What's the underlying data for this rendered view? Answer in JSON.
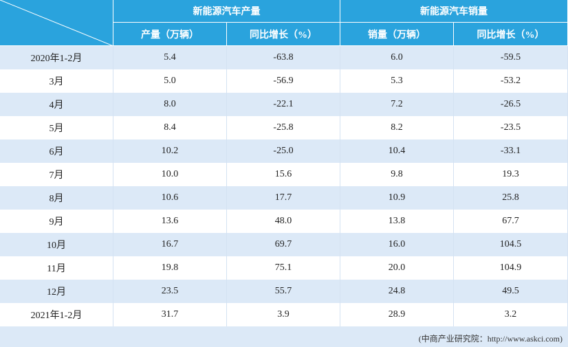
{
  "table": {
    "groups": [
      "新能源汽车产量",
      "新能源汽车销量"
    ],
    "columns": [
      "产量（万辆）",
      "同比增长（%）",
      "销量（万辆）",
      "同比增长（%）"
    ],
    "rows": [
      [
        "2020年1-2月",
        "5.4",
        "-63.8",
        "6.0",
        "-59.5"
      ],
      [
        "3月",
        "5.0",
        "-56.9",
        "5.3",
        "-53.2"
      ],
      [
        "4月",
        "8.0",
        "-22.1",
        "7.2",
        "-26.5"
      ],
      [
        "5月",
        "8.4",
        "-25.8",
        "8.2",
        "-23.5"
      ],
      [
        "6月",
        "10.2",
        "-25.0",
        "10.4",
        "-33.1"
      ],
      [
        "7月",
        "10.0",
        "15.6",
        "9.8",
        "19.3"
      ],
      [
        "8月",
        "10.6",
        "17.7",
        "10.9",
        "25.8"
      ],
      [
        "9月",
        "13.6",
        "48.0",
        "13.8",
        "67.7"
      ],
      [
        "10月",
        "16.7",
        "69.7",
        "16.0",
        "104.5"
      ],
      [
        "11月",
        "19.8",
        "75.1",
        "20.0",
        "104.9"
      ],
      [
        "12月",
        "23.5",
        "55.7",
        "24.8",
        "49.5"
      ],
      [
        "2021年1-2月",
        "31.7",
        "3.9",
        "28.9",
        "3.2"
      ]
    ],
    "source": "(中商产业研究院：http://www.askci.com)"
  }
}
